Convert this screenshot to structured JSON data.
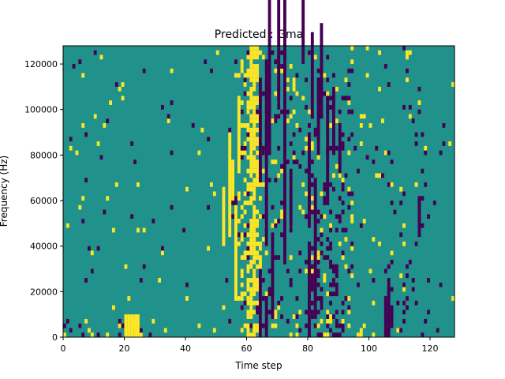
{
  "chart_data": {
    "type": "heatmap",
    "title": "Predicted : Gma",
    "xlabel": "Time step",
    "ylabel": "Frequency (Hz)",
    "xlim": [
      0,
      128
    ],
    "ylim": [
      0,
      128000
    ],
    "x_ticks": [
      "0",
      "20",
      "40",
      "60",
      "80",
      "100",
      "120"
    ],
    "x_tick_values": [
      0,
      20,
      40,
      60,
      80,
      100,
      120
    ],
    "y_ticks": [
      "0",
      "20000",
      "40000",
      "60000",
      "80000",
      "100000",
      "120000"
    ],
    "y_tick_values": [
      0,
      20000,
      40000,
      60000,
      80000,
      100000,
      120000
    ],
    "time_steps": 128,
    "frequency_bins": 64,
    "colormap": {
      "low": "#440154",
      "mid": "#21918c",
      "high": "#fde725"
    },
    "background_value": "mid",
    "yellow_ridge": {
      "time_steps": [
        58,
        59,
        60,
        61,
        62,
        63,
        64
      ],
      "description_free": true
    },
    "low_segments": [
      [
        64,
        0,
        14
      ],
      [
        64,
        34,
        56
      ],
      [
        66,
        0,
        8
      ],
      [
        66,
        20,
        60
      ],
      [
        67,
        40,
        90
      ],
      [
        68,
        4,
        22
      ],
      [
        70,
        50,
        110
      ],
      [
        72,
        16,
        74
      ],
      [
        74,
        24,
        36
      ],
      [
        76,
        88,
        110
      ],
      [
        78,
        60,
        84
      ],
      [
        80,
        0,
        20
      ],
      [
        80,
        24,
        44
      ],
      [
        81,
        48,
        66
      ],
      [
        82,
        4,
        34
      ],
      [
        83,
        40,
        56
      ],
      [
        84,
        48,
        68
      ],
      [
        86,
        30,
        52
      ],
      [
        88,
        40,
        54
      ],
      [
        90,
        36,
        46
      ],
      [
        105,
        0,
        8
      ],
      [
        106,
        0,
        12
      ],
      [
        107,
        2,
        6
      ],
      [
        116,
        22,
        30
      ]
    ],
    "high_segments": [
      [
        20,
        0,
        4
      ],
      [
        21,
        0,
        4
      ],
      [
        22,
        0,
        4
      ],
      [
        23,
        0,
        4
      ],
      [
        24,
        0,
        4
      ],
      [
        52,
        20,
        32
      ],
      [
        54,
        22,
        44
      ],
      [
        55,
        30,
        38
      ],
      [
        56,
        8,
        28
      ],
      [
        57,
        36,
        52
      ]
    ]
  }
}
